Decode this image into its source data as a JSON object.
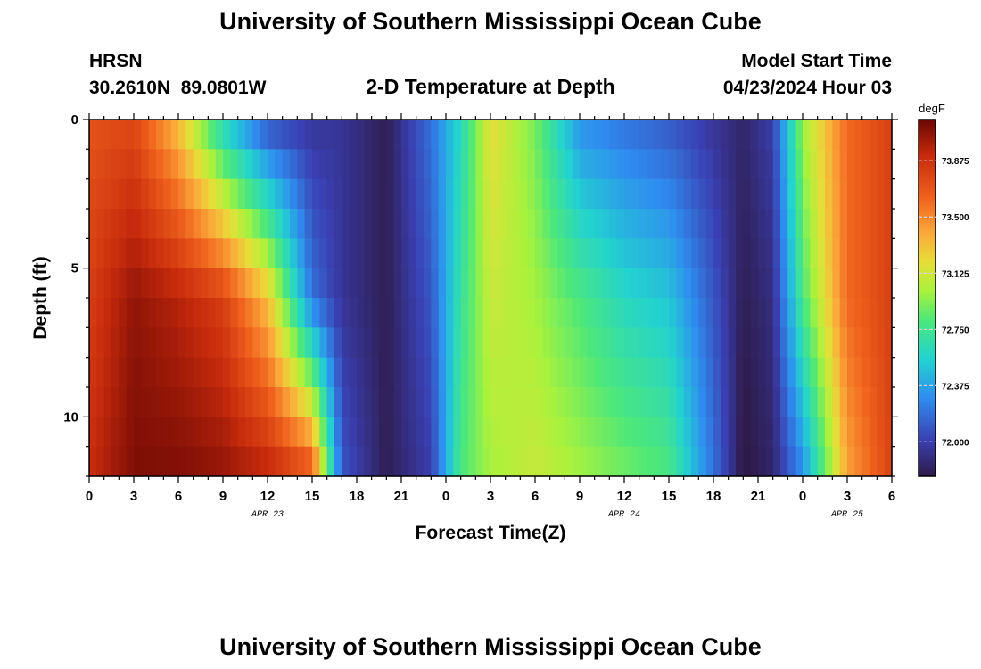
{
  "page": {
    "top_title": "University of Southern Mississippi Ocean Cube",
    "bottom_title": "University of Southern Mississippi Ocean Cube",
    "station_name": "HRSN",
    "station_coords": "30.2610N  89.0801W",
    "plot_title": "2-D Temperature at Depth",
    "model_start_label": "Model Start Time",
    "model_start_value": "04/23/2024 Hour 03"
  },
  "chart_data": {
    "type": "heatmap",
    "title": "2-D Temperature at Depth",
    "xlabel": "Forecast Time(Z)",
    "ylabel": "Depth (ft)",
    "x_range_hours": [
      0,
      54
    ],
    "x_tick_labels": [
      "0",
      "3",
      "6",
      "9",
      "12",
      "15",
      "18",
      "21",
      "0",
      "3",
      "6",
      "9",
      "12",
      "15",
      "18",
      "21",
      "0",
      "3",
      "6"
    ],
    "x_date_labels": [
      {
        "label": "APR 23",
        "hour": 12
      },
      {
        "label": "APR 24",
        "hour": 36
      },
      {
        "label": "APR 25",
        "hour": 51
      }
    ],
    "y_range_ft": [
      0,
      12
    ],
    "y_tick_labels": [
      "0",
      "5",
      "10"
    ],
    "colorbar": {
      "unit": "degF",
      "range": [
        71.77,
        74.15
      ],
      "tick_values": [
        72.0,
        72.375,
        72.75,
        73.125,
        73.5,
        73.875
      ],
      "tick_labels": [
        "72.000",
        "72.375",
        "72.750",
        "73.125",
        "73.500",
        "73.875"
      ]
    },
    "grid": false,
    "profile_depths_ft": [
      0,
      6,
      12
    ],
    "temperature_profiles_degF": [
      {
        "hour": 0,
        "values": [
          73.7,
          73.8,
          73.9
        ]
      },
      {
        "hour": 3,
        "values": [
          73.75,
          74.05,
          74.1
        ]
      },
      {
        "hour": 6,
        "values": [
          73.3,
          73.95,
          74.1
        ]
      },
      {
        "hour": 9,
        "values": [
          72.55,
          73.8,
          74.05
        ]
      },
      {
        "hour": 12,
        "values": [
          72.05,
          73.3,
          73.95
        ]
      },
      {
        "hour": 15,
        "values": [
          71.95,
          72.2,
          73.75
        ]
      },
      {
        "hour": 17,
        "values": [
          71.95,
          71.95,
          72.1
        ]
      },
      {
        "hour": 20,
        "values": [
          71.8,
          71.8,
          71.8
        ]
      },
      {
        "hour": 23,
        "values": [
          72.2,
          72.1,
          72.0
        ]
      },
      {
        "hour": 25,
        "values": [
          72.6,
          72.7,
          72.8
        ]
      },
      {
        "hour": 27,
        "values": [
          73.2,
          73.1,
          73.0
        ]
      },
      {
        "hour": 30,
        "values": [
          72.9,
          73.0,
          73.1
        ]
      },
      {
        "hour": 33,
        "values": [
          72.3,
          72.8,
          73.0
        ]
      },
      {
        "hour": 36,
        "values": [
          72.2,
          72.6,
          72.9
        ]
      },
      {
        "hour": 39,
        "values": [
          72.1,
          72.5,
          72.8
        ]
      },
      {
        "hour": 42,
        "values": [
          71.95,
          72.1,
          72.2
        ]
      },
      {
        "hour": 44,
        "values": [
          71.85,
          71.8,
          71.75
        ]
      },
      {
        "hour": 46,
        "values": [
          72.0,
          71.9,
          71.85
        ]
      },
      {
        "hour": 48,
        "values": [
          73.0,
          72.8,
          72.3
        ]
      },
      {
        "hour": 51,
        "values": [
          73.6,
          73.6,
          73.4
        ]
      },
      {
        "hour": 54,
        "values": [
          73.8,
          73.8,
          73.8
        ]
      }
    ]
  }
}
